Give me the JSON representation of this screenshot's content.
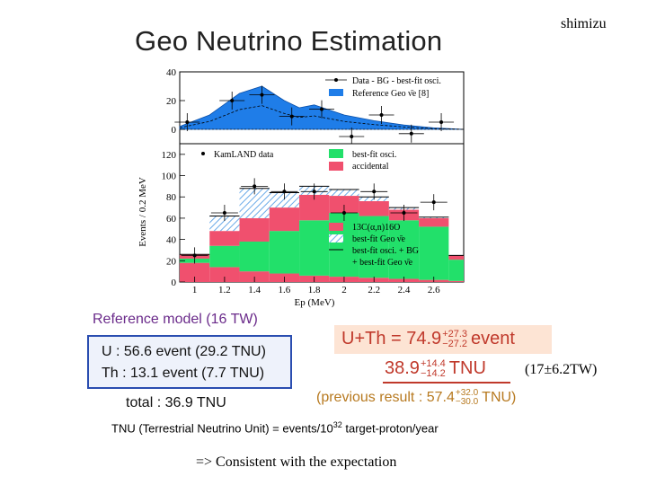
{
  "header": {
    "author": "shimizu",
    "title": "Geo Neutrino Estimation"
  },
  "chart_data": [
    {
      "type": "area",
      "panel": "top",
      "x_ticks": [],
      "y_ticks": [
        "40",
        "20",
        "0"
      ],
      "ylim": [
        -10,
        40
      ],
      "legend": [
        "Data - BG - best-fit osci.",
        "Reference Geo ν̄e [8]"
      ],
      "data_x": [
        0.95,
        1.25,
        1.45,
        1.65,
        1.85,
        2.05,
        2.25,
        2.45,
        2.65
      ],
      "data_y": [
        5,
        20,
        24,
        9,
        14,
        -5,
        10,
        -3,
        5
      ],
      "reference_x": [
        0.9,
        1.1,
        1.3,
        1.45,
        1.6,
        1.7,
        1.8,
        2.0,
        2.2,
        2.4,
        2.6,
        2.8
      ],
      "reference_y": [
        2,
        10,
        25,
        30,
        20,
        15,
        17,
        10,
        6,
        3,
        1,
        0
      ]
    },
    {
      "type": "bar",
      "panel": "bottom",
      "x_ticks": [
        "1",
        "1.2",
        "1.4",
        "1.6",
        "1.8",
        "2",
        "2.2",
        "2.4",
        "2.6"
      ],
      "y_ticks": [
        "120",
        "100",
        "80",
        "60",
        "40",
        "20",
        "0"
      ],
      "xlim": [
        0.9,
        2.8
      ],
      "ylim": [
        0,
        130
      ],
      "xlabel": "Ep (MeV)",
      "ylabel": "Events / 0.2 MeV",
      "legend": [
        "KamLAND data",
        "best-fit osci.",
        "accidental",
        "13C(α,n)16O",
        "best-fit Geo ν̄e",
        "best-fit osci. + BG",
        "+ best-fit Geo ν̄e"
      ],
      "bin_edges": [
        0.9,
        1.1,
        1.3,
        1.5,
        1.7,
        1.9,
        2.1,
        2.3,
        2.5,
        2.7,
        2.8
      ],
      "accidental": [
        18,
        14,
        10,
        8,
        6,
        5,
        4,
        3,
        2,
        1
      ],
      "best_fit_osci": [
        4,
        20,
        28,
        40,
        52,
        60,
        58,
        55,
        50,
        20
      ],
      "c13": [
        4,
        14,
        22,
        22,
        24,
        16,
        14,
        10,
        8,
        4
      ],
      "geo": [
        0,
        14,
        28,
        14,
        8,
        6,
        4,
        2,
        1,
        0
      ],
      "data_x": [
        1.0,
        1.2,
        1.4,
        1.6,
        1.8,
        2.0,
        2.2,
        2.4,
        2.6
      ],
      "data_y": [
        25,
        65,
        90,
        85,
        85,
        65,
        85,
        65,
        75
      ]
    }
  ],
  "reference": {
    "heading": "Reference model (16 TW)",
    "u_line": "U : 56.6 event (29.2 TNU)",
    "th_line": "Th : 13.1 event (7.7 TNU)",
    "total": "total : 36.9 TNU"
  },
  "result": {
    "uth_label": "U+Th = 74.9",
    "uth_up": "+27.3",
    "uth_down": "−27.2",
    "uth_unit": "event",
    "tnu_value": "38.9",
    "tnu_up": "+14.4",
    "tnu_down": "−14.2",
    "tnu_unit": "TNU",
    "tw_note": "(17±6.2TW)",
    "prev_label": "(previous result : 57.4",
    "prev_up": "+32.0",
    "prev_down": "−30.0",
    "prev_unit": "TNU)"
  },
  "definition": {
    "pre": "TNU (Terrestrial Neutrino Unit) = events/10",
    "exp": "32",
    "post": " target-proton/year"
  },
  "conclusion": "=> Consistent with the expectation",
  "colors": {
    "geo_fill": "#1f7de8",
    "accidental": "#f0506e",
    "osci": "#22e06a",
    "c13_hatch": "#6aaae8",
    "prev_text": "#b7791f",
    "result_text": "#c0392b",
    "ref_box_border": "#2a4db0"
  }
}
